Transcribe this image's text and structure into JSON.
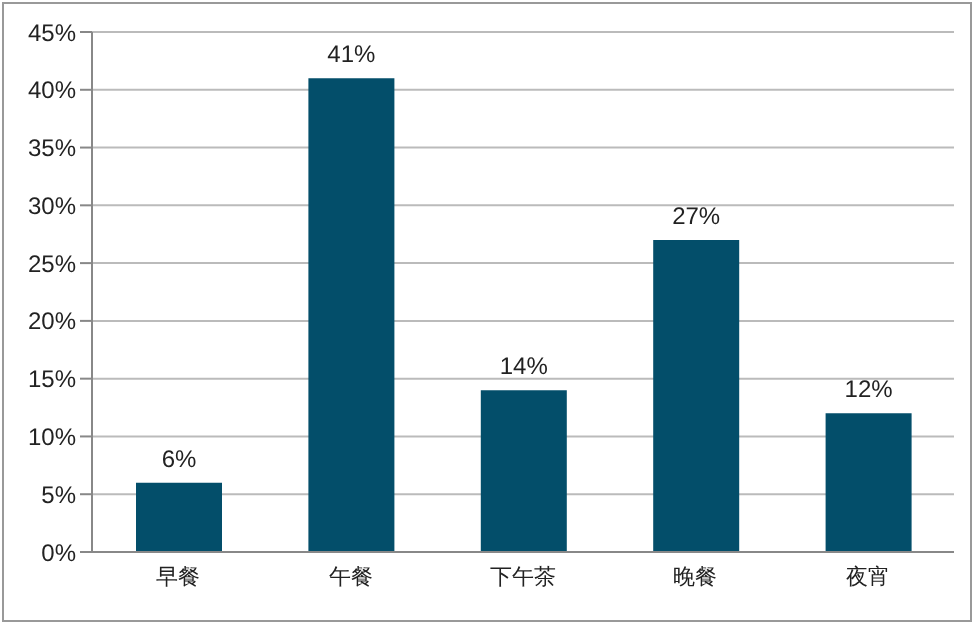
{
  "chart_data": {
    "type": "bar",
    "categories": [
      "早餐",
      "午餐",
      "下午茶",
      "晚餐",
      "夜宵"
    ],
    "values": [
      6,
      41,
      14,
      27,
      12
    ],
    "color": "#034e6a",
    "value_labels": [
      "6%",
      "41%",
      "14%",
      "27%",
      "12%"
    ],
    "ylim": [
      0,
      45
    ],
    "yticks": [
      {
        "value": 0,
        "label": "0%"
      },
      {
        "value": 5,
        "label": "5%"
      },
      {
        "value": 10,
        "label": "10%"
      },
      {
        "value": 15,
        "label": "15%"
      },
      {
        "value": 20,
        "label": "20%"
      },
      {
        "value": 25,
        "label": "25%"
      },
      {
        "value": 30,
        "label": "30%"
      },
      {
        "value": 35,
        "label": "35%"
      },
      {
        "value": 40,
        "label": "40%"
      },
      {
        "value": 45,
        "label": "45%"
      }
    ],
    "grid": "y"
  }
}
